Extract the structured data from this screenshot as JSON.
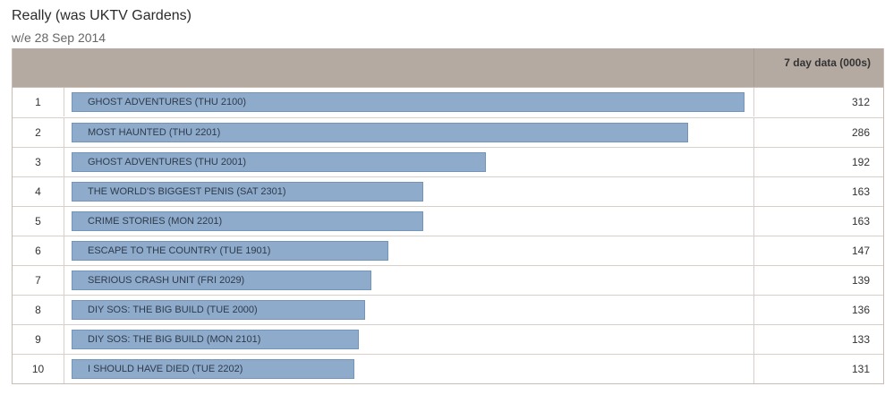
{
  "title": "Really (was UKTV Gardens)",
  "subtitle": "w/e 28 Sep 2014",
  "header": {
    "rank_label": "",
    "programme_label": "",
    "value_label": "7 day data (000s)"
  },
  "colors": {
    "header_bg": "#b5aaa2",
    "bar_fill": "#8eabcc",
    "bar_border": "#7495bb",
    "row_border": "#d8cfc8"
  },
  "chart_data": {
    "type": "bar",
    "orientation": "horizontal",
    "title": "Really (was UKTV Gardens)",
    "subtitle": "w/e 28 Sep 2014",
    "ylabel": "7 day data (000s)",
    "xlim": [
      0,
      312
    ],
    "grid": false,
    "rows": [
      {
        "rank": "1",
        "label": "GHOST ADVENTURES (THU 2100)",
        "value": 312
      },
      {
        "rank": "2",
        "label": "MOST HAUNTED (THU 2201)",
        "value": 286
      },
      {
        "rank": "3",
        "label": "GHOST ADVENTURES (THU 2001)",
        "value": 192
      },
      {
        "rank": "4",
        "label": "THE WORLD'S BIGGEST PENIS (SAT 2301)",
        "value": 163
      },
      {
        "rank": "5",
        "label": "CRIME STORIES (MON 2201)",
        "value": 163
      },
      {
        "rank": "6",
        "label": "ESCAPE TO THE COUNTRY (TUE 1901)",
        "value": 147
      },
      {
        "rank": "7",
        "label": "SERIOUS CRASH UNIT (FRI 2029)",
        "value": 139
      },
      {
        "rank": "8",
        "label": "DIY SOS: THE BIG BUILD (TUE 2000)",
        "value": 136
      },
      {
        "rank": "9",
        "label": "DIY SOS: THE BIG BUILD (MON 2101)",
        "value": 133
      },
      {
        "rank": "10",
        "label": "I SHOULD HAVE DIED (TUE 2202)",
        "value": 131
      }
    ]
  }
}
